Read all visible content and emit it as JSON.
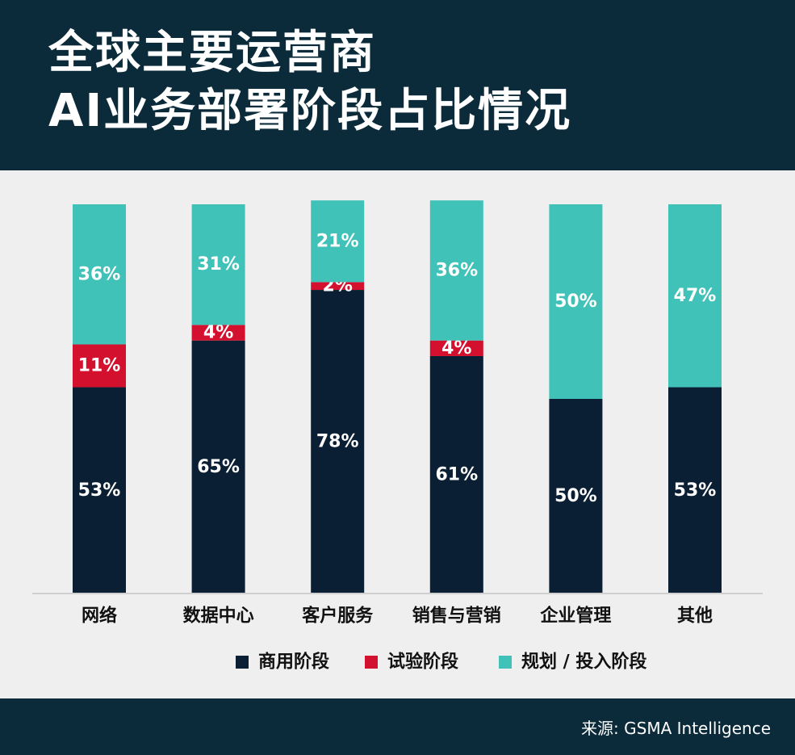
{
  "header": {
    "title_line1": "全球主要运营商",
    "title_line2": "AI业务部署阶段占比情况"
  },
  "footer": {
    "source": "来源: GSMA Intelligence"
  },
  "colors": {
    "commercial": "#0a1f33",
    "trial": "#d4102f",
    "planning": "#40c2b8"
  },
  "chart_data": {
    "type": "bar",
    "stacked": true,
    "categories": [
      "网络",
      "数据中心",
      "客户服务",
      "销售与营销",
      "企业管理",
      "其他"
    ],
    "series": [
      {
        "name": "商用阶段",
        "values": [
          53,
          65,
          78,
          61,
          50,
          53
        ]
      },
      {
        "name": "试验阶段",
        "values": [
          11,
          4,
          2,
          4,
          0,
          0
        ]
      },
      {
        "name": "规划 / 投入阶段",
        "values": [
          36,
          31,
          21,
          36,
          50,
          47
        ]
      }
    ],
    "ylim": [
      0,
      100
    ],
    "value_suffix": "%",
    "legend_position": "bottom-center",
    "grid": false
  }
}
